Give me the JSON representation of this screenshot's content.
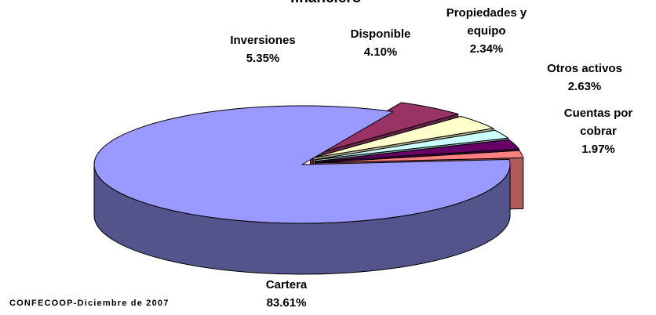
{
  "chart_data": {
    "type": "pie3d",
    "title": "financiero",
    "categories": [
      "Cartera",
      "Inversiones",
      "Disponible",
      "Propiedades y equipo",
      "Otros activos",
      "Cuentas por cobrar"
    ],
    "values": [
      83.61,
      5.35,
      4.1,
      2.34,
      2.63,
      1.97
    ],
    "value_labels": [
      "83.61%",
      "5.35%",
      "4.10%",
      "2.34%",
      "2.63%",
      "1.97%"
    ],
    "colors": [
      "#9999ff",
      "#993366",
      "#ffffcc",
      "#ccffff",
      "#660066",
      "#ff8080"
    ],
    "source": "CONFECOOP-Diciembre de 2007"
  }
}
